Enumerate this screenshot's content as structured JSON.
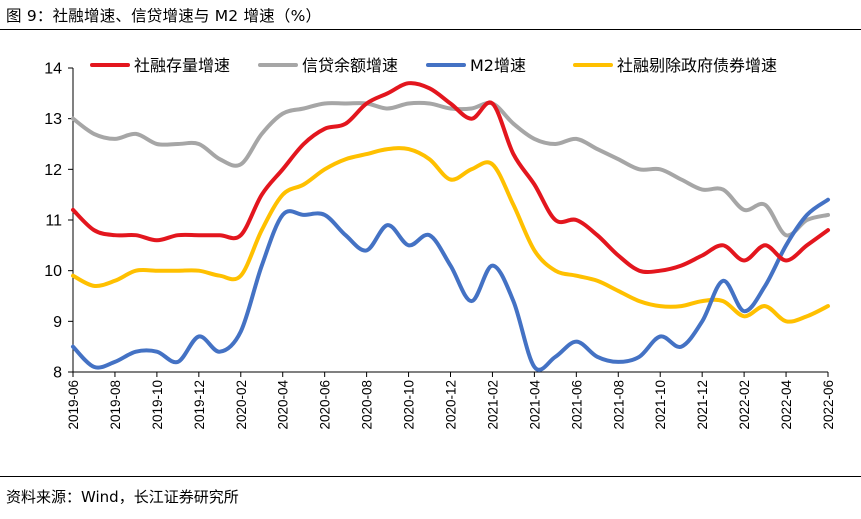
{
  "title": "图 9：社融增速、信贷增速与 M2 增速（%）",
  "source": "资料来源：Wind，长江证券研究所",
  "chart_data": {
    "type": "line",
    "title": "图 9：社融增速、信贷增速与 M2 增速（%）",
    "xlabel": "",
    "ylabel": "",
    "ylim": [
      8,
      14
    ],
    "yticks": [
      8,
      9,
      10,
      11,
      12,
      13,
      14
    ],
    "grid": false,
    "legend_position": "top",
    "x": [
      "2019-06",
      "2019-07",
      "2019-08",
      "2019-09",
      "2019-10",
      "2019-11",
      "2019-12",
      "2020-01",
      "2020-02",
      "2020-03",
      "2020-04",
      "2020-05",
      "2020-06",
      "2020-07",
      "2020-08",
      "2020-09",
      "2020-10",
      "2020-11",
      "2020-12",
      "2021-01",
      "2021-02",
      "2021-03",
      "2021-04",
      "2021-05",
      "2021-06",
      "2021-07",
      "2021-08",
      "2021-09",
      "2021-10",
      "2021-11",
      "2021-12",
      "2022-01",
      "2022-02",
      "2022-03",
      "2022-04",
      "2022-05",
      "2022-06"
    ],
    "xtick_labels": [
      "2019-06",
      "2019-08",
      "2019-10",
      "2019-12",
      "2020-02",
      "2020-04",
      "2020-06",
      "2020-08",
      "2020-10",
      "2020-12",
      "2021-02",
      "2021-04",
      "2021-06",
      "2021-08",
      "2021-10",
      "2021-12",
      "2022-02",
      "2022-04",
      "2022-06"
    ],
    "series": [
      {
        "name": "社融存量增速",
        "color": "#e3161e",
        "values": [
          11.2,
          10.8,
          10.7,
          10.7,
          10.6,
          10.7,
          10.7,
          10.7,
          10.7,
          11.5,
          12.0,
          12.5,
          12.8,
          12.9,
          13.3,
          13.5,
          13.7,
          13.6,
          13.3,
          13.0,
          13.3,
          12.3,
          11.7,
          11.0,
          11.0,
          10.7,
          10.3,
          10.0,
          10.0,
          10.1,
          10.3,
          10.5,
          10.2,
          10.5,
          10.2,
          10.5,
          10.8
        ]
      },
      {
        "name": "信贷余额增速",
        "color": "#a6a6a6",
        "values": [
          13.0,
          12.7,
          12.6,
          12.7,
          12.5,
          12.5,
          12.5,
          12.2,
          12.1,
          12.7,
          13.1,
          13.2,
          13.3,
          13.3,
          13.3,
          13.2,
          13.3,
          13.3,
          13.2,
          13.2,
          13.3,
          12.9,
          12.6,
          12.5,
          12.6,
          12.4,
          12.2,
          12.0,
          12.0,
          11.8,
          11.6,
          11.6,
          11.2,
          11.3,
          10.7,
          11.0,
          11.1
        ]
      },
      {
        "name": "M2增速",
        "color": "#4472c4",
        "values": [
          8.5,
          8.1,
          8.2,
          8.4,
          8.4,
          8.2,
          8.7,
          8.4,
          8.8,
          10.1,
          11.1,
          11.1,
          11.1,
          10.7,
          10.4,
          10.9,
          10.5,
          10.7,
          10.1,
          9.4,
          10.1,
          9.4,
          8.1,
          8.3,
          8.6,
          8.3,
          8.2,
          8.3,
          8.7,
          8.5,
          9.0,
          9.8,
          9.2,
          9.7,
          10.5,
          11.1,
          11.4
        ]
      },
      {
        "name": "社融剔除政府债券增速",
        "color": "#ffc000",
        "values": [
          9.9,
          9.7,
          9.8,
          10.0,
          10.0,
          10.0,
          10.0,
          9.9,
          9.9,
          10.8,
          11.5,
          11.7,
          12.0,
          12.2,
          12.3,
          12.4,
          12.4,
          12.2,
          11.8,
          12.0,
          12.1,
          11.3,
          10.4,
          10.0,
          9.9,
          9.8,
          9.6,
          9.4,
          9.3,
          9.3,
          9.4,
          9.4,
          9.1,
          9.3,
          9.0,
          9.1,
          9.3
        ]
      }
    ]
  }
}
